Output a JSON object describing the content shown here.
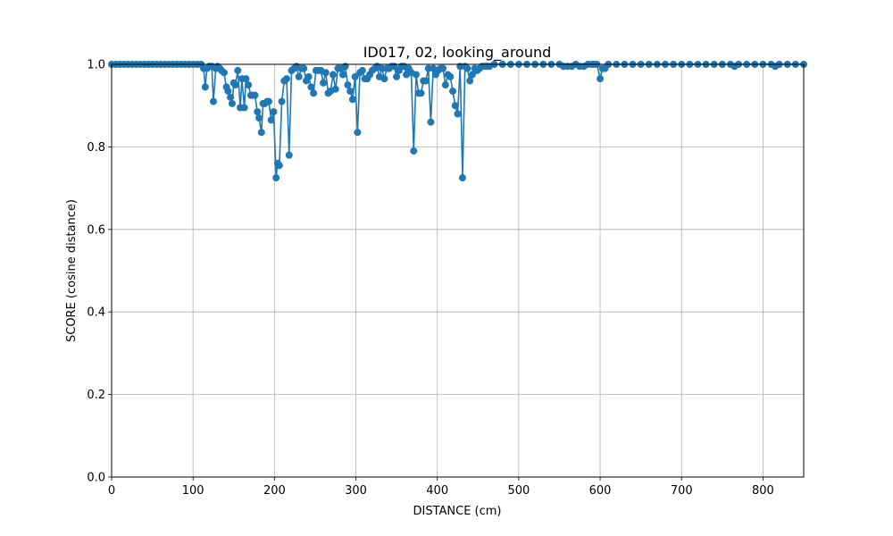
{
  "chart_data": {
    "type": "line",
    "title": "ID017, 02, looking_around",
    "xlabel": "DISTANCE (cm)",
    "ylabel": "SCORE (cosine distance)",
    "xlim": [
      0,
      850
    ],
    "ylim": [
      0.0,
      1.0
    ],
    "xticks": [
      "0",
      "100",
      "200",
      "300",
      "400",
      "500",
      "600",
      "700",
      "800"
    ],
    "yticks": [
      "0.0",
      "0.2",
      "0.4",
      "0.6",
      "0.8",
      "1.0"
    ],
    "grid": true,
    "line_color": "#1f77b4",
    "marker": "circle",
    "series": [
      {
        "x": [
          0,
          5,
          10,
          15,
          20,
          25,
          30,
          35,
          40,
          45,
          50,
          55,
          60,
          65,
          70,
          75,
          80,
          85,
          90,
          95,
          100,
          105,
          110,
          113,
          115,
          117,
          120,
          123,
          125,
          128,
          130,
          133,
          135,
          138,
          141,
          143,
          146,
          148,
          150,
          152,
          155,
          158,
          160,
          163,
          165,
          168,
          171,
          173,
          176,
          179,
          181,
          184,
          186,
          188,
          191,
          193,
          196,
          199,
          202,
          204,
          206,
          209,
          212,
          215,
          218,
          221,
          224,
          227,
          230,
          233,
          236,
          239,
          242,
          245,
          248,
          251,
          254,
          257,
          260,
          263,
          266,
          269,
          272,
          275,
          278,
          281,
          284,
          287,
          290,
          293,
          296,
          299,
          302,
          305,
          308,
          311,
          314,
          317,
          320,
          323,
          326,
          329,
          332,
          335,
          338,
          341,
          344,
          347,
          350,
          353,
          356,
          359,
          362,
          365,
          368,
          371,
          374,
          377,
          380,
          383,
          386,
          389,
          392,
          395,
          398,
          401,
          404,
          407,
          410,
          413,
          416,
          419,
          422,
          425,
          428,
          431,
          434,
          437,
          440,
          443,
          446,
          449,
          452,
          455,
          458,
          461,
          464,
          470,
          480,
          490,
          500,
          510,
          520,
          530,
          540,
          550,
          555,
          560,
          565,
          570,
          575,
          580,
          585,
          590,
          593,
          596,
          600,
          603,
          606,
          610,
          620,
          630,
          640,
          650,
          660,
          670,
          680,
          690,
          700,
          710,
          720,
          730,
          740,
          750,
          760,
          765,
          770,
          780,
          790,
          800,
          810,
          815,
          820,
          830,
          840,
          850
        ],
        "y": [
          1.0,
          1.0,
          1.0,
          1.0,
          1.0,
          1.0,
          1.0,
          1.0,
          1.0,
          1.0,
          1.0,
          1.0,
          1.0,
          1.0,
          1.0,
          1.0,
          1.0,
          1.0,
          1.0,
          1.0,
          1.0,
          1.0,
          1.0,
          0.99,
          0.945,
          0.99,
          0.995,
          0.995,
          0.91,
          0.99,
          0.995,
          0.99,
          0.985,
          0.98,
          0.945,
          0.935,
          0.92,
          0.905,
          0.955,
          0.95,
          0.985,
          0.895,
          0.965,
          0.895,
          0.965,
          0.95,
          0.925,
          0.925,
          0.925,
          0.885,
          0.87,
          0.835,
          0.905,
          0.905,
          0.91,
          0.91,
          0.865,
          0.885,
          0.725,
          0.76,
          0.755,
          0.91,
          0.96,
          0.965,
          0.78,
          0.985,
          0.99,
          0.995,
          0.97,
          0.99,
          0.99,
          0.96,
          0.97,
          0.945,
          0.93,
          0.985,
          0.985,
          0.985,
          0.955,
          0.98,
          0.93,
          0.935,
          0.975,
          0.94,
          0.99,
          0.99,
          0.975,
          0.995,
          0.95,
          0.935,
          0.915,
          0.97,
          0.835,
          0.98,
          0.985,
          0.965,
          0.965,
          0.975,
          0.985,
          0.99,
          0.995,
          0.97,
          0.99,
          0.965,
          0.99,
          0.99,
          0.995,
          0.995,
          0.97,
          0.985,
          0.995,
          0.995,
          0.975,
          0.99,
          0.98,
          0.79,
          0.975,
          0.93,
          0.93,
          0.96,
          0.96,
          0.99,
          0.86,
          0.99,
          0.975,
          0.985,
          0.99,
          0.99,
          0.95,
          0.975,
          0.97,
          0.935,
          0.9,
          0.88,
          0.995,
          0.725,
          0.995,
          0.99,
          0.96,
          0.975,
          0.99,
          0.985,
          0.99,
          0.995,
          0.995,
          0.995,
          0.995,
          1.0,
          1.0,
          1.0,
          1.0,
          1.0,
          1.0,
          1.0,
          1.0,
          1.0,
          0.995,
          0.995,
          0.995,
          1.0,
          0.995,
          0.995,
          1.0,
          1.0,
          1.0,
          1.0,
          0.965,
          0.99,
          0.99,
          1.0,
          1.0,
          1.0,
          1.0,
          1.0,
          1.0,
          1.0,
          1.0,
          1.0,
          1.0,
          1.0,
          1.0,
          1.0,
          1.0,
          1.0,
          1.0,
          0.995,
          1.0,
          1.0,
          1.0,
          1.0,
          1.0,
          0.995,
          1.0,
          1.0,
          1.0,
          1.0
        ]
      }
    ]
  }
}
